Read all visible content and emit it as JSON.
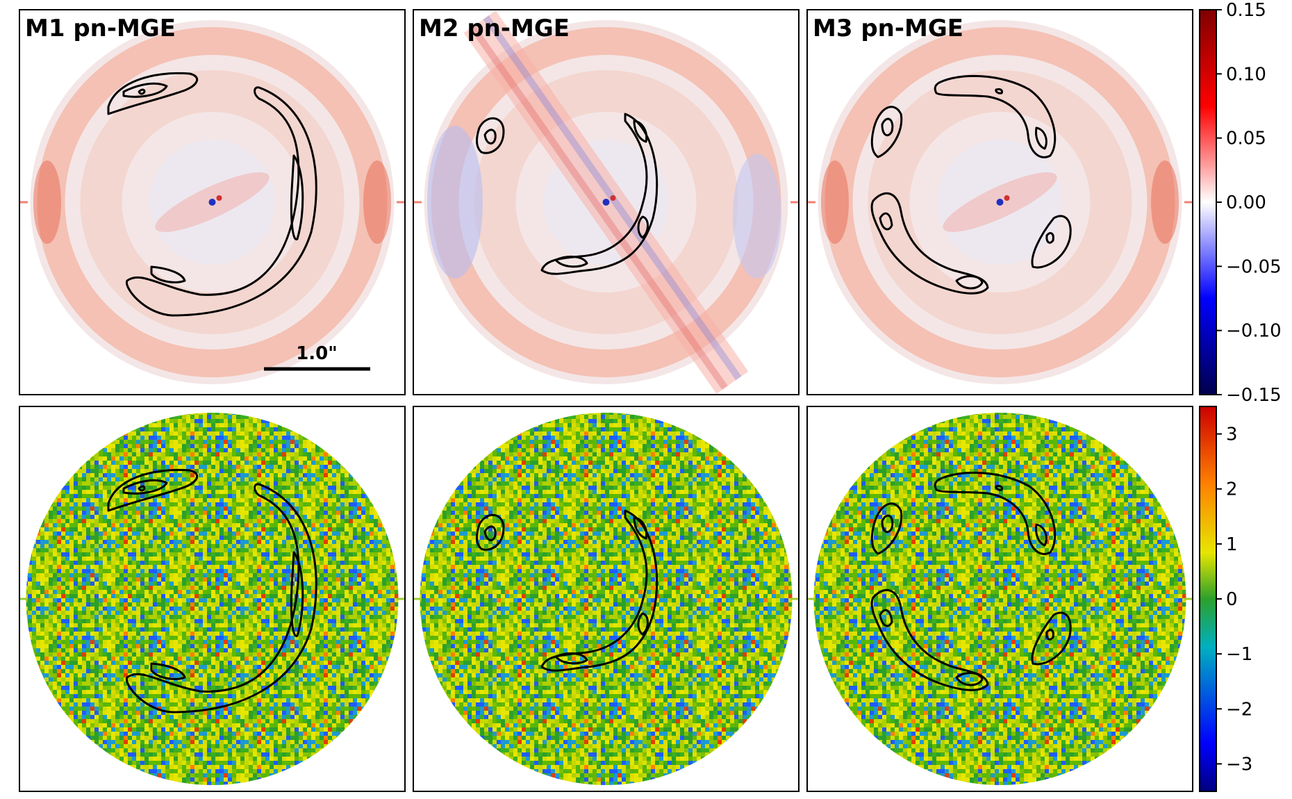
{
  "chart_data": [
    {
      "type": "heatmap",
      "row": "model-residual",
      "panels": [
        {
          "title": "M1 pn-MGE",
          "model": "M1",
          "scalebar": "1.0\"",
          "mask_shape": "annulus",
          "central_feature": "elongated residual along major axis"
        },
        {
          "title": "M2 pn-MGE",
          "model": "M2",
          "mask_shape": "annulus",
          "central_feature": "diagonal striped residual band"
        },
        {
          "title": "M3 pn-MGE",
          "model": "M3",
          "mask_shape": "annulus",
          "central_feature": "compact central residual"
        }
      ],
      "colormap": "seismic",
      "colorbar": {
        "range": [
          -0.15,
          0.15
        ],
        "ticks": [
          "0.15",
          "0.10",
          "0.05",
          "0.00",
          "−0.05",
          "−0.10",
          "−0.15"
        ]
      }
    },
    {
      "type": "heatmap",
      "row": "normalized-residual",
      "panels": [
        {
          "model": "M1",
          "mask_shape": "disk"
        },
        {
          "model": "M2",
          "mask_shape": "disk"
        },
        {
          "model": "M3",
          "mask_shape": "disk"
        }
      ],
      "colormap": "jet",
      "colorbar": {
        "range": [
          -3.5,
          3.5
        ],
        "ticks": [
          "3",
          "2",
          "1",
          "0",
          "−1",
          "−2",
          "−3"
        ]
      }
    }
  ]
}
